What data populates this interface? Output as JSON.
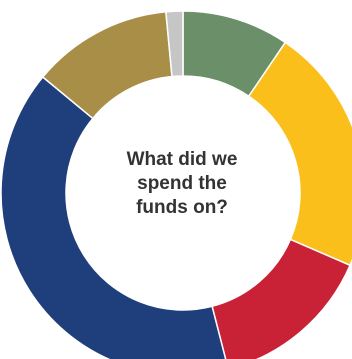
{
  "chart_data": {
    "type": "pie",
    "style": "donut",
    "center_label": [
      "What did we",
      "spend the",
      "funds on?"
    ],
    "slices": [
      {
        "value": 9.5,
        "color": "#6a8f69"
      },
      {
        "value": 22,
        "color": "#fbbf1c"
      },
      {
        "value": 14.5,
        "color": "#c92236"
      },
      {
        "value": 40,
        "color": "#1e3f7b"
      },
      {
        "value": 12.5,
        "color": "#a88e46"
      },
      {
        "value": 1.5,
        "color": "#c6c6c6"
      }
    ],
    "legend": "none",
    "grid": false
  }
}
